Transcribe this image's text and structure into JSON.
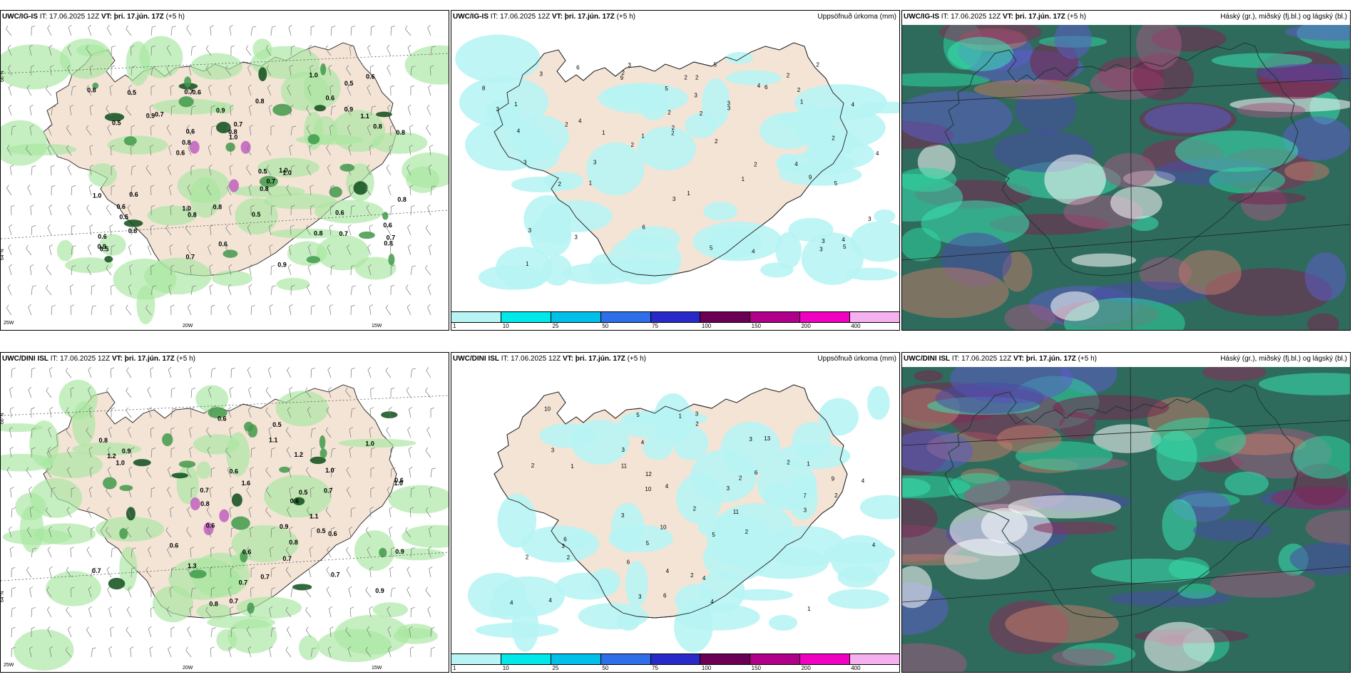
{
  "panels": [
    {
      "title_model": "UWC/IG-IS",
      "title_it": "IT: 17.06.2025 12Z",
      "title_vt": "VT: þri. 17.jún. 17Z",
      "title_lead": "(+5 h)",
      "right_title": "",
      "kind": "precip-wind"
    },
    {
      "title_model": "UWC/IG-IS",
      "title_it": "IT: 17.06.2025 12Z",
      "title_vt": "VT: þri. 17.jún. 17Z",
      "title_lead": "(+5 h)",
      "right_title": "Uppsöfnuð úrkoma (mm)",
      "kind": "accum"
    },
    {
      "title_model": "UWC/IG-IS",
      "title_it": "IT: 17.06.2025 12Z",
      "title_vt": "VT: þri. 17.jún. 17Z",
      "title_lead": "(+5 h)",
      "right_title": "Háský (gr.), miðský (fj.bl.) og lágský (bl.)",
      "kind": "cloud"
    },
    {
      "title_model": "UWC/DINI ISL",
      "title_it": "IT: 17.06.2025 12Z",
      "title_vt": "VT: þri. 17.jún. 17Z",
      "title_lead": "(+5 h)",
      "right_title": "",
      "kind": "precip-wind"
    },
    {
      "title_model": "UWC/DINI ISL",
      "title_it": "IT: 17.06.2025 12Z",
      "title_vt": "VT: þri. 17.jún. 17Z",
      "title_lead": "(+5 h)",
      "right_title": "Uppsöfnuð úrkoma (mm)",
      "kind": "accum"
    },
    {
      "title_model": "UWC/DINI ISL",
      "title_it": "IT: 17.06.2025 12Z",
      "title_vt": "VT: þri. 17.jún. 17Z",
      "title_lead": "(+5 h)",
      "right_title": "Háský (gr.), miðský (fj.bl.) og lágský (bl.)",
      "kind": "cloud"
    }
  ],
  "axis_labels": {
    "lat66": "66°N",
    "lat64": "64°N",
    "lon25": "25W",
    "lon20": "20W",
    "lon15": "15W"
  },
  "legend": {
    "labels": [
      "1",
      "10",
      "25",
      "50",
      "75",
      "100",
      "150",
      "200",
      "400"
    ],
    "colors": [
      "#b8f4f4",
      "#00e8e8",
      "#00bfe8",
      "#2e6ee8",
      "#2929c8",
      "#6a0055",
      "#b0008a",
      "#f000c0",
      "#f5b0f0"
    ]
  },
  "precip_values_top": [
    "0.5",
    "0.7",
    "0.8",
    "0.5",
    "0.6",
    "0.8",
    "0.6",
    "0.7",
    "0.9",
    "1.0",
    "0.7",
    "0.6",
    "0.5",
    "0.6",
    "0.7",
    "1.0",
    "0.8",
    "0.7",
    "0.8",
    "0.5",
    "0.9",
    "0.8",
    "1.0",
    "0.6",
    "0.5",
    "0.9",
    "0.6",
    "0.8",
    "0.6",
    "1.0",
    "0.6",
    "0.9",
    "0.5",
    "0.8",
    "0.8",
    "1.1",
    "0.8",
    "0.7",
    "0.8",
    "1.0",
    "0.8",
    "0.6",
    "0.6",
    "0.7",
    "0.5",
    "0.6",
    "0.9",
    "0.8",
    "0.8",
    "1.0"
  ],
  "precip_values_bottom": [
    "0.7",
    "0.8",
    "0.5",
    "0.7",
    "0.6",
    "0.6",
    "0.6",
    "0.7",
    "0.7",
    "1.1",
    "0.9",
    "1.2",
    "0.9",
    "0.6",
    "1.0",
    "0.6",
    "1.0",
    "0.7",
    "1.3",
    "1.6",
    "0.6",
    "1.2",
    "0.8",
    "0.7",
    "0.6",
    "0.5",
    "0.9",
    "1.0",
    "0.9",
    "1.0",
    "0.7",
    "1.1",
    "0.5",
    "0.8",
    "0.6",
    "0.8",
    "0.7"
  ],
  "accum_values_top": [
    "1",
    "1",
    "2",
    "2",
    "3",
    "2",
    "5",
    "1",
    "3",
    "4",
    "3",
    "3",
    "5",
    "3",
    "6",
    "4",
    "3",
    "3",
    "8",
    "5",
    "9",
    "2",
    "2",
    "9",
    "2",
    "2",
    "3",
    "4",
    "5",
    "6",
    "1",
    "3",
    "2",
    "4",
    "2",
    "3",
    "1",
    "2",
    "1",
    "2",
    "1",
    "4",
    "5",
    "3",
    "3",
    "2",
    "2",
    "6",
    "4",
    "3",
    "2",
    "3",
    "4",
    "4",
    "2",
    "1",
    "2"
  ],
  "accum_values_bottom": [
    "2",
    "2",
    "1",
    "4",
    "2",
    "3",
    "3",
    "2",
    "4",
    "7",
    "4",
    "4",
    "6",
    "9",
    "10",
    "13",
    "5",
    "11",
    "2",
    "1",
    "3",
    "3",
    "6",
    "3",
    "10",
    "11",
    "10",
    "4",
    "3",
    "6",
    "12",
    "4",
    "5",
    "2",
    "2",
    "4",
    "4",
    "2",
    "3",
    "5",
    "6",
    "2",
    "3",
    "1",
    "3",
    "2",
    "1",
    "4"
  ]
}
